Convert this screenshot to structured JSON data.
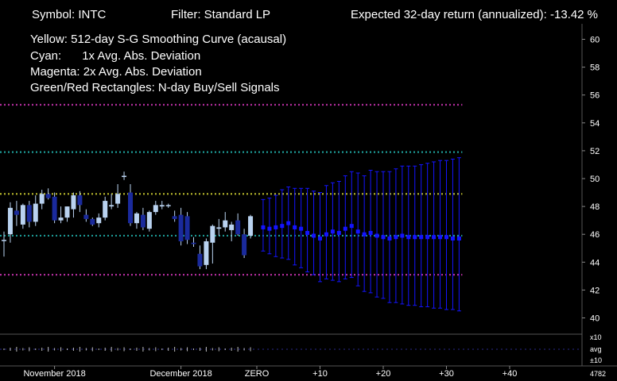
{
  "header": {
    "symbol": "Symbol: INTC",
    "filter": "Filter: Standard LP",
    "expected": "Expected 32-day return (annualized):  -13.42 %"
  },
  "legend": {
    "yellow": "Yellow: 512-day S-G Smoothing Curve (acausal)",
    "cyan_label": "Cyan:",
    "cyan_text": "1x Avg. Abs. Deviation",
    "magenta": "Magenta: 2x Avg. Abs. Deviation",
    "rects": "Green/Red Rectangles: N-day Buy/Sell Signals"
  },
  "colors": {
    "background": "#000000",
    "up_candle": "#b9d2f0",
    "down_candle": "#1a2a9c",
    "yellow": "#b8b82c",
    "cyan": "#1d9b96",
    "magenta": "#b02c9a",
    "forecast": "#1414ff",
    "axis": "#555555"
  },
  "chart_data": {
    "type": "candlestick",
    "y_axis": {
      "min": 40,
      "max": 60,
      "ticks": [
        40,
        42,
        44,
        46,
        48,
        50,
        52,
        54,
        56,
        58,
        60
      ]
    },
    "x_labels": [
      {
        "label": "November 2018",
        "index": 8
      },
      {
        "label": "December 2018",
        "index": 28
      },
      {
        "label": "ZERO",
        "index": 40
      },
      {
        "label": "+10",
        "index": 50
      },
      {
        "label": "+20",
        "index": 60
      },
      {
        "label": "+30",
        "index": 70
      },
      {
        "label": "+40",
        "index": 80
      }
    ],
    "bands": {
      "yellow": 48.9,
      "cyan_upper": 51.9,
      "cyan_lower": 45.9,
      "magenta_upper": 55.3,
      "magenta_lower": 43.1
    },
    "candles": [
      [
        45.6,
        46.2,
        44.4,
        45.6
      ],
      [
        46.0,
        48.3,
        45.4,
        47.9
      ],
      [
        47.7,
        48.4,
        46.6,
        47.4
      ],
      [
        46.7,
        48.2,
        46.4,
        48.1
      ],
      [
        48.1,
        48.4,
        46.5,
        46.9
      ],
      [
        46.9,
        48.8,
        46.6,
        48.2
      ],
      [
        48.2,
        49.2,
        47.8,
        48.9
      ],
      [
        48.9,
        49.3,
        48.5,
        48.6
      ],
      [
        48.7,
        49.0,
        46.8,
        47.0
      ],
      [
        47.0,
        48.0,
        46.8,
        47.2
      ],
      [
        47.2,
        48.0,
        46.9,
        48.0
      ],
      [
        47.8,
        49.0,
        47.2,
        48.8
      ],
      [
        48.8,
        49.1,
        47.6,
        48.1
      ],
      [
        47.4,
        47.8,
        46.9,
        47.1
      ],
      [
        47.1,
        47.2,
        46.6,
        46.7
      ],
      [
        46.8,
        47.5,
        46.5,
        47.2
      ],
      [
        47.2,
        48.7,
        47.0,
        48.4
      ],
      [
        48.0,
        48.9,
        47.8,
        48.1
      ],
      [
        48.2,
        49.6,
        47.9,
        48.9
      ],
      [
        50.2,
        50.5,
        49.9,
        50.2
      ],
      [
        49.0,
        49.6,
        46.6,
        46.8
      ],
      [
        46.8,
        47.6,
        46.4,
        47.5
      ],
      [
        47.4,
        47.9,
        46.3,
        46.5
      ],
      [
        46.4,
        47.7,
        46.2,
        47.6
      ],
      [
        47.6,
        48.4,
        47.4,
        48.1
      ],
      [
        48.0,
        48.4,
        47.8,
        48.1
      ],
      [
        48.1,
        48.2,
        47.9,
        48.1
      ],
      [
        47.3,
        47.7,
        46.9,
        47.1
      ],
      [
        47.4,
        47.9,
        45.2,
        45.5
      ],
      [
        47.3,
        47.6,
        45.3,
        45.6
      ],
      [
        45.4,
        45.8,
        45.1,
        45.3
      ],
      [
        44.6,
        45.2,
        43.5,
        43.7
      ],
      [
        43.8,
        45.7,
        43.5,
        45.5
      ],
      [
        45.4,
        46.7,
        43.9,
        46.6
      ],
      [
        46.4,
        47.1,
        45.9,
        46.5
      ],
      [
        46.5,
        47.6,
        46.2,
        47.0
      ],
      [
        46.3,
        46.9,
        45.5,
        46.7
      ],
      [
        47.0,
        47.5,
        45.9,
        46.0
      ],
      [
        46.0,
        46.4,
        44.3,
        44.5
      ],
      [
        45.9,
        47.4,
        45.7,
        47.3
      ]
    ],
    "forecast": {
      "x": [
        41,
        42,
        43,
        44,
        45,
        46,
        47,
        48,
        49,
        50,
        51,
        52,
        53,
        54,
        55,
        56,
        57,
        58,
        59,
        60,
        61,
        62,
        63,
        64,
        65,
        66,
        67,
        68,
        69,
        70,
        71,
        72
      ],
      "mid": [
        46.5,
        46.4,
        46.5,
        46.6,
        46.8,
        46.5,
        46.4,
        46.1,
        45.9,
        45.7,
        46.0,
        46.2,
        46.1,
        46.4,
        46.6,
        46.2,
        46.0,
        46.1,
        45.9,
        45.8,
        45.7,
        45.8,
        45.9,
        45.8,
        45.8,
        45.8,
        45.8,
        45.8,
        45.8,
        45.8,
        45.7,
        45.7
      ],
      "hi": [
        48.5,
        48.6,
        48.8,
        49.2,
        49.4,
        49.3,
        49.3,
        49.3,
        49.1,
        49.0,
        49.5,
        49.7,
        49.8,
        50.2,
        50.5,
        50.4,
        50.2,
        50.6,
        50.5,
        50.5,
        50.5,
        50.7,
        50.9,
        50.9,
        50.9,
        51.0,
        51.1,
        51.2,
        51.3,
        51.3,
        51.4,
        51.5
      ],
      "lo": [
        44.8,
        44.6,
        44.4,
        44.3,
        44.2,
        43.8,
        43.6,
        43.3,
        43.1,
        42.6,
        42.8,
        42.7,
        42.6,
        42.8,
        42.9,
        42.3,
        41.9,
        41.8,
        41.5,
        41.4,
        41.1,
        41.1,
        41.0,
        40.9,
        40.9,
        40.8,
        40.8,
        40.7,
        40.7,
        40.6,
        40.6,
        40.5
      ]
    },
    "sub_panel": {
      "labels": [
        "x10",
        "avg",
        "±10"
      ],
      "count_label": "4782"
    }
  }
}
